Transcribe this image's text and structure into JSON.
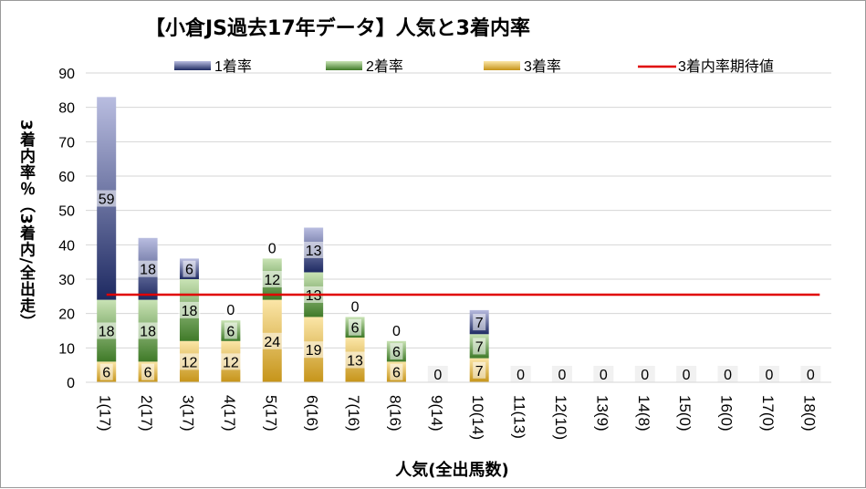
{
  "chart_data": {
    "type": "bar",
    "title": "【小倉JS過去17年データ】人気と3着内率",
    "xlabel": "人気(全出馬数)",
    "ylabel": "3着内率％（3着内/全出走）",
    "ylim": [
      0,
      90
    ],
    "yticks": [
      0,
      10,
      20,
      30,
      40,
      50,
      60,
      70,
      80,
      90
    ],
    "grid": true,
    "stacked": true,
    "legend_position": "top",
    "categories": [
      "1(17)",
      "2(17)",
      "3(17)",
      "4(17)",
      "5(17)",
      "6(16)",
      "7(16)",
      "8(16)",
      "9(14)",
      "10(14)",
      "11(13)",
      "12(10)",
      "13(9)",
      "14(8)",
      "15(0)",
      "16(0)",
      "17(0)",
      "18(0)"
    ],
    "series": [
      {
        "name": "1着率",
        "color": "#2e3a7a",
        "values": [
          59,
          18,
          6,
          0,
          0,
          13,
          0,
          0,
          0,
          7,
          0,
          0,
          0,
          0,
          0,
          0,
          0,
          0
        ]
      },
      {
        "name": "2着率",
        "color": "#5a8c3a",
        "values": [
          18,
          18,
          18,
          6,
          12,
          13,
          6,
          6,
          0,
          7,
          0,
          0,
          0,
          0,
          0,
          0,
          0,
          0
        ]
      },
      {
        "name": "3着率",
        "color": "#d8a830",
        "values": [
          6,
          6,
          12,
          12,
          24,
          19,
          13,
          6,
          0,
          7,
          0,
          0,
          0,
          0,
          0,
          0,
          0,
          0
        ]
      }
    ],
    "reference_line": {
      "name": "3着内率期待値",
      "color": "#e00000",
      "value": 25.5
    }
  }
}
